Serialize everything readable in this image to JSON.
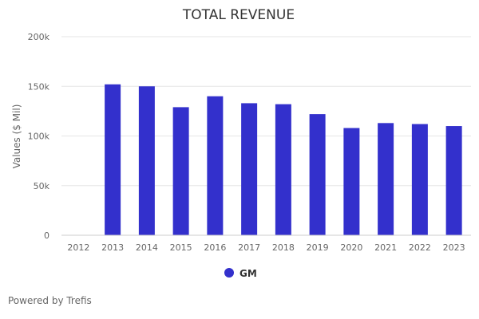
{
  "chart_data": {
    "type": "bar",
    "title": "TOTAL REVENUE",
    "xlabel": "",
    "ylabel": "Values ($ Mil)",
    "categories": [
      "2012",
      "2013",
      "2014",
      "2015",
      "2016",
      "2017",
      "2018",
      "2019",
      "2020",
      "2021",
      "2022",
      "2023"
    ],
    "series": [
      {
        "name": "GM",
        "values": [
          null,
          152,
          150,
          129,
          140,
          133,
          132,
          122,
          108,
          113,
          112,
          110
        ]
      }
    ],
    "ylim": [
      0,
      200
    ],
    "yticks": [
      0,
      50,
      100,
      150,
      200
    ],
    "ytick_labels": [
      "0",
      "50k",
      "100k",
      "150k",
      "200k"
    ],
    "grid": true,
    "legend": "bottom-center"
  },
  "colors": {
    "series": "#3330cc",
    "grid": "#e6e6e6",
    "axis": "#cccccc"
  },
  "credit": "Powered by Trefis"
}
